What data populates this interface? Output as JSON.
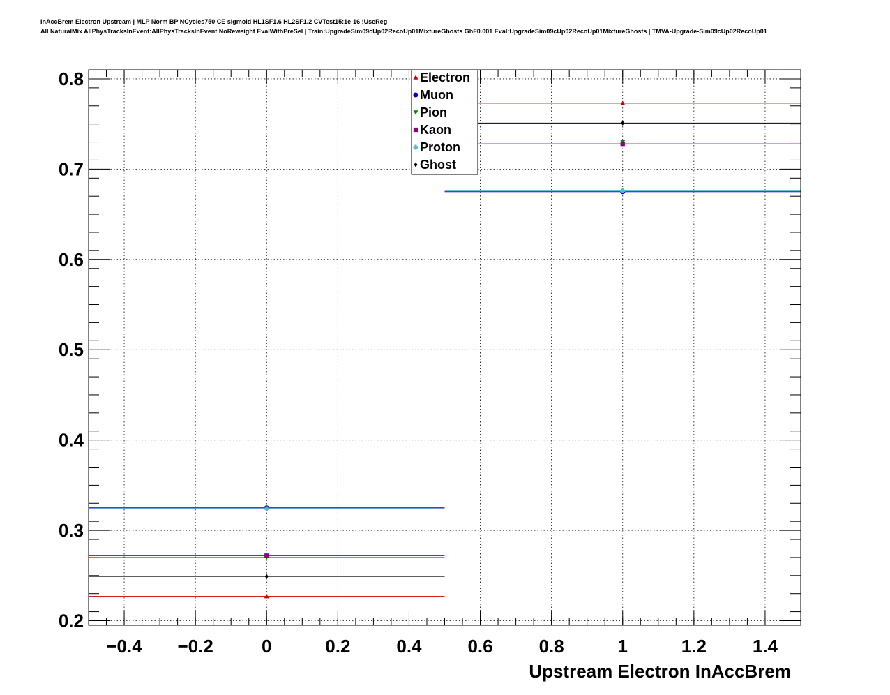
{
  "header": {
    "title_line1": "InAccBrem Electron Upstream | MLP Norm BP NCycles750 CE sigmoid HL1SF1.6 HL2SF1.2 CVTest15:1e-16 !UseReg",
    "title_line2": "All NaturalMix AllPhysTracksInEvent:AllPhysTracksInEvent NoReweight EvalWithPreSel | Train:UpgradeSim09cUp02RecoUp01MixtureGhosts GhF0.001 Eval:UpgradeSim09cUp02RecoUp01MixtureGhosts | TMVA-Upgrade-Sim09cUp02RecoUp01"
  },
  "chart_data": {
    "type": "scatter",
    "title": "",
    "xlabel": "Upstream Electron InAccBrem",
    "ylabel": "",
    "xlim": [
      -0.5,
      1.5
    ],
    "ylim": [
      0.195,
      0.81
    ],
    "grid": true,
    "legend_position": "top-center",
    "x_ticks": [
      -0.4,
      -0.2,
      0,
      0.2,
      0.4,
      0.6,
      0.8,
      1,
      1.2,
      1.4
    ],
    "x_tick_labels": [
      "−0.4",
      "−0.2",
      "0",
      "0.2",
      "0.4",
      "0.6",
      "0.8",
      "1",
      "1.2",
      "1.4"
    ],
    "y_ticks": [
      0.2,
      0.3,
      0.4,
      0.5,
      0.6,
      0.7,
      0.8
    ],
    "y_tick_labels": [
      "0.2",
      "0.3",
      "0.4",
      "0.5",
      "0.6",
      "0.7",
      "0.8"
    ],
    "bins": [
      {
        "center": 0,
        "low": -0.5,
        "high": 0.5
      },
      {
        "center": 1,
        "low": 0.5,
        "high": 1.5
      }
    ],
    "series": [
      {
        "name": "Electron",
        "color": "#cc0000",
        "marker": "triangle-up",
        "values": [
          0.227,
          0.773
        ]
      },
      {
        "name": "Muon",
        "color": "#0000cc",
        "marker": "circle",
        "values": [
          0.325,
          0.675
        ]
      },
      {
        "name": "Pion",
        "color": "#008800",
        "marker": "triangle-down",
        "values": [
          0.27,
          0.73
        ]
      },
      {
        "name": "Kaon",
        "color": "#880088",
        "marker": "square",
        "values": [
          0.272,
          0.728
        ]
      },
      {
        "name": "Proton",
        "color": "#55bbcc",
        "marker": "cross",
        "values": [
          0.324,
          0.676
        ]
      },
      {
        "name": "Ghost",
        "color": "#000000",
        "marker": "diamond",
        "values": [
          0.249,
          0.751
        ]
      }
    ]
  }
}
